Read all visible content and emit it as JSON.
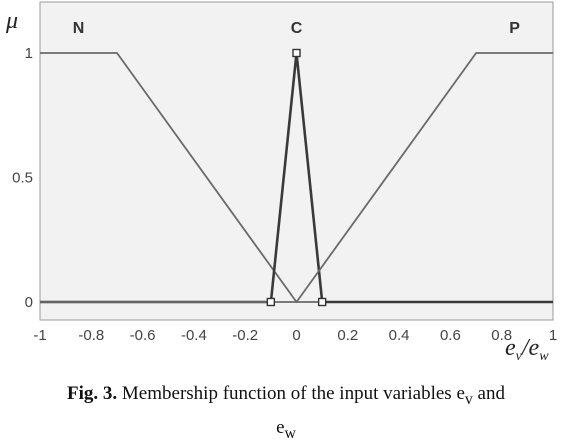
{
  "chart_data": {
    "type": "line",
    "title": "",
    "ylabel": "μ",
    "xlabel": {
      "a": "e",
      "a_sub": "v",
      "sep": "/",
      "b": "e",
      "b_sub": "w"
    },
    "xlim": [
      -1,
      1
    ],
    "ylim": [
      0,
      1.05
    ],
    "x_ticks": [
      "-1",
      "-0.8",
      "-0.6",
      "-0.4",
      "-0.2",
      "0",
      "0.2",
      "0.4",
      "0.6",
      "0.8",
      "1"
    ],
    "y_ticks": [
      "0",
      "0.5",
      "1"
    ],
    "grid": false,
    "series": [
      {
        "name": "N",
        "x": [
          -1,
          -0.7,
          0,
          1
        ],
        "y": [
          1,
          1,
          0,
          0
        ]
      },
      {
        "name": "C",
        "x": [
          -1,
          -0.1,
          0,
          0.1,
          1
        ],
        "y": [
          0,
          0,
          1,
          0,
          0
        ],
        "markers": [
          -0.1,
          0,
          0.1
        ]
      },
      {
        "name": "P",
        "x": [
          -1,
          0,
          0.7,
          1
        ],
        "y": [
          0,
          0,
          1,
          1
        ]
      }
    ],
    "label_positions": {
      "N": -0.85,
      "C": 0,
      "P": 0.85
    }
  },
  "caption": {
    "label": "Fig. 3.",
    "text": " Membership function of the input variables e",
    "sub1": "v",
    "mid": " and",
    "line2": "e",
    "sub2": "w"
  }
}
